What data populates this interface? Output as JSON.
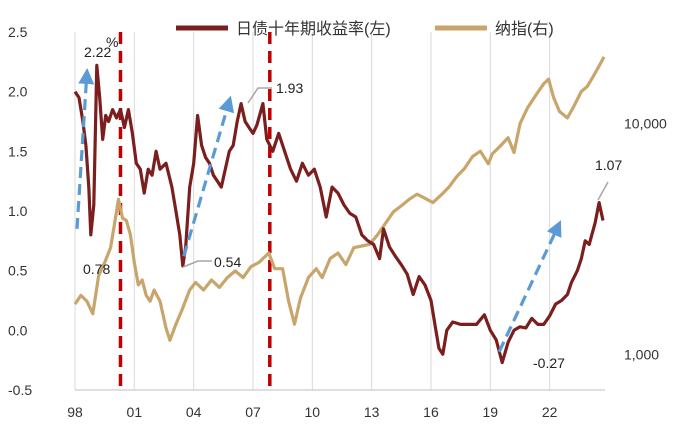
{
  "chart_data": {
    "type": "line",
    "unit_label": "%",
    "legend_position": "top",
    "grid": "vertical",
    "x_ticks": [
      "98",
      "01",
      "04",
      "07",
      "10",
      "13",
      "16",
      "19",
      "22"
    ],
    "y_left": {
      "ticks": [
        "2.5",
        "2.0",
        "1.5",
        "1.0",
        "0.5",
        "0.0",
        "-0.5"
      ],
      "range": [
        -0.5,
        2.5
      ]
    },
    "y_right": {
      "scale": "log",
      "ticks": [
        "10,000",
        "1,000"
      ],
      "range": [
        700,
        25000
      ]
    },
    "x_range": [
      1998,
      2024.8
    ],
    "series": [
      {
        "name": "日债十年期收益率(左)",
        "axis": "left",
        "color": "#7b1e1e",
        "points": [
          [
            1998.0,
            2.0
          ],
          [
            1998.2,
            1.95
          ],
          [
            1998.4,
            1.75
          ],
          [
            1998.55,
            1.55
          ],
          [
            1998.7,
            1.2
          ],
          [
            1998.8,
            0.8
          ],
          [
            1998.95,
            1.05
          ],
          [
            1999.1,
            2.22
          ],
          [
            1999.25,
            1.95
          ],
          [
            1999.4,
            1.6
          ],
          [
            1999.55,
            1.8
          ],
          [
            1999.7,
            1.75
          ],
          [
            1999.9,
            1.85
          ],
          [
            2000.1,
            1.78
          ],
          [
            2000.3,
            1.85
          ],
          [
            2000.5,
            1.7
          ],
          [
            2000.7,
            1.85
          ],
          [
            2000.9,
            1.65
          ],
          [
            2001.1,
            1.4
          ],
          [
            2001.3,
            1.35
          ],
          [
            2001.5,
            1.15
          ],
          [
            2001.7,
            1.35
          ],
          [
            2001.9,
            1.3
          ],
          [
            2002.1,
            1.5
          ],
          [
            2002.3,
            1.35
          ],
          [
            2002.6,
            1.4
          ],
          [
            2002.9,
            1.2
          ],
          [
            2003.1,
            1.0
          ],
          [
            2003.3,
            0.8
          ],
          [
            2003.45,
            0.54
          ],
          [
            2003.6,
            0.7
          ],
          [
            2003.8,
            1.2
          ],
          [
            2004.0,
            1.4
          ],
          [
            2004.2,
            1.8
          ],
          [
            2004.4,
            1.55
          ],
          [
            2004.6,
            1.45
          ],
          [
            2004.8,
            1.4
          ],
          [
            2005.0,
            1.3
          ],
          [
            2005.2,
            1.25
          ],
          [
            2005.4,
            1.2
          ],
          [
            2005.6,
            1.35
          ],
          [
            2005.8,
            1.5
          ],
          [
            2006.0,
            1.55
          ],
          [
            2006.2,
            1.75
          ],
          [
            2006.4,
            1.9
          ],
          [
            2006.6,
            1.75
          ],
          [
            2006.8,
            1.7
          ],
          [
            2007.0,
            1.65
          ],
          [
            2007.2,
            1.72
          ],
          [
            2007.5,
            1.9
          ],
          [
            2007.7,
            1.6
          ],
          [
            2008.0,
            1.5
          ],
          [
            2008.3,
            1.65
          ],
          [
            2008.6,
            1.5
          ],
          [
            2008.9,
            1.35
          ],
          [
            2009.2,
            1.25
          ],
          [
            2009.5,
            1.4
          ],
          [
            2009.8,
            1.3
          ],
          [
            2010.1,
            1.35
          ],
          [
            2010.4,
            1.2
          ],
          [
            2010.7,
            0.95
          ],
          [
            2011.0,
            1.2
          ],
          [
            2011.3,
            1.15
          ],
          [
            2011.6,
            1.05
          ],
          [
            2011.9,
            0.98
          ],
          [
            2012.2,
            0.95
          ],
          [
            2012.5,
            0.8
          ],
          [
            2012.8,
            0.75
          ],
          [
            2013.1,
            0.72
          ],
          [
            2013.4,
            0.6
          ],
          [
            2013.6,
            0.85
          ],
          [
            2013.9,
            0.7
          ],
          [
            2014.2,
            0.62
          ],
          [
            2014.5,
            0.55
          ],
          [
            2014.8,
            0.47
          ],
          [
            2015.1,
            0.3
          ],
          [
            2015.4,
            0.45
          ],
          [
            2015.7,
            0.38
          ],
          [
            2016.0,
            0.25
          ],
          [
            2016.2,
            0.05
          ],
          [
            2016.4,
            -0.15
          ],
          [
            2016.6,
            -0.2
          ],
          [
            2016.8,
            0.0
          ],
          [
            2017.1,
            0.07
          ],
          [
            2017.5,
            0.05
          ],
          [
            2017.9,
            0.05
          ],
          [
            2018.3,
            0.05
          ],
          [
            2018.7,
            0.13
          ],
          [
            2019.0,
            0.0
          ],
          [
            2019.3,
            -0.08
          ],
          [
            2019.6,
            -0.27
          ],
          [
            2019.9,
            -0.1
          ],
          [
            2020.2,
            0.0
          ],
          [
            2020.5,
            0.03
          ],
          [
            2020.8,
            0.02
          ],
          [
            2021.1,
            0.1
          ],
          [
            2021.4,
            0.05
          ],
          [
            2021.7,
            0.05
          ],
          [
            2022.0,
            0.12
          ],
          [
            2022.3,
            0.22
          ],
          [
            2022.6,
            0.25
          ],
          [
            2022.9,
            0.3
          ],
          [
            2023.1,
            0.4
          ],
          [
            2023.4,
            0.5
          ],
          [
            2023.6,
            0.6
          ],
          [
            2023.8,
            0.75
          ],
          [
            2024.0,
            0.72
          ],
          [
            2024.3,
            0.9
          ],
          [
            2024.5,
            1.07
          ],
          [
            2024.7,
            0.92
          ]
        ]
      },
      {
        "name": "纳指(右)",
        "axis": "right",
        "color": "#c8a56b",
        "points": [
          [
            1998.0,
            1650
          ],
          [
            1998.3,
            1800
          ],
          [
            1998.6,
            1700
          ],
          [
            1998.9,
            1500
          ],
          [
            1999.2,
            2200
          ],
          [
            1999.5,
            2500
          ],
          [
            1999.8,
            2900
          ],
          [
            2000.0,
            3700
          ],
          [
            2000.2,
            4700
          ],
          [
            2000.4,
            3900
          ],
          [
            2000.6,
            3800
          ],
          [
            2000.8,
            3300
          ],
          [
            2001.0,
            2500
          ],
          [
            2001.2,
            2000
          ],
          [
            2001.4,
            2100
          ],
          [
            2001.6,
            1800
          ],
          [
            2001.8,
            1700
          ],
          [
            2002.0,
            1900
          ],
          [
            2002.3,
            1700
          ],
          [
            2002.6,
            1300
          ],
          [
            2002.8,
            1150
          ],
          [
            2003.1,
            1350
          ],
          [
            2003.4,
            1550
          ],
          [
            2003.8,
            1900
          ],
          [
            2004.1,
            2050
          ],
          [
            2004.5,
            1900
          ],
          [
            2004.9,
            2100
          ],
          [
            2005.3,
            1950
          ],
          [
            2005.7,
            2150
          ],
          [
            2006.1,
            2300
          ],
          [
            2006.5,
            2150
          ],
          [
            2006.9,
            2400
          ],
          [
            2007.3,
            2500
          ],
          [
            2007.8,
            2750
          ],
          [
            2008.1,
            2350
          ],
          [
            2008.5,
            2350
          ],
          [
            2008.8,
            1700
          ],
          [
            2009.1,
            1350
          ],
          [
            2009.4,
            1750
          ],
          [
            2009.8,
            2150
          ],
          [
            2010.2,
            2350
          ],
          [
            2010.5,
            2150
          ],
          [
            2010.9,
            2600
          ],
          [
            2011.3,
            2750
          ],
          [
            2011.7,
            2450
          ],
          [
            2012.1,
            2900
          ],
          [
            2012.5,
            2950
          ],
          [
            2012.9,
            3000
          ],
          [
            2013.3,
            3300
          ],
          [
            2013.7,
            3700
          ],
          [
            2014.1,
            4150
          ],
          [
            2014.5,
            4400
          ],
          [
            2014.9,
            4700
          ],
          [
            2015.3,
            4950
          ],
          [
            2015.7,
            4750
          ],
          [
            2016.1,
            4550
          ],
          [
            2016.5,
            4900
          ],
          [
            2016.9,
            5300
          ],
          [
            2017.3,
            5900
          ],
          [
            2017.7,
            6400
          ],
          [
            2018.1,
            7200
          ],
          [
            2018.5,
            7600
          ],
          [
            2018.9,
            6700
          ],
          [
            2019.1,
            7400
          ],
          [
            2019.5,
            8000
          ],
          [
            2019.9,
            8700
          ],
          [
            2020.2,
            7500
          ],
          [
            2020.5,
            10000
          ],
          [
            2020.9,
            11800
          ],
          [
            2021.3,
            13300
          ],
          [
            2021.7,
            14900
          ],
          [
            2021.95,
            15600
          ],
          [
            2022.2,
            13000
          ],
          [
            2022.5,
            11300
          ],
          [
            2022.9,
            10600
          ],
          [
            2023.2,
            11800
          ],
          [
            2023.6,
            13800
          ],
          [
            2023.9,
            14500
          ],
          [
            2024.2,
            16000
          ],
          [
            2024.5,
            17800
          ],
          [
            2024.75,
            19500
          ]
        ]
      }
    ],
    "annotations": [
      "2.22",
      "0.78",
      "0.54",
      "1.93",
      "-0.27",
      "1.07"
    ]
  }
}
